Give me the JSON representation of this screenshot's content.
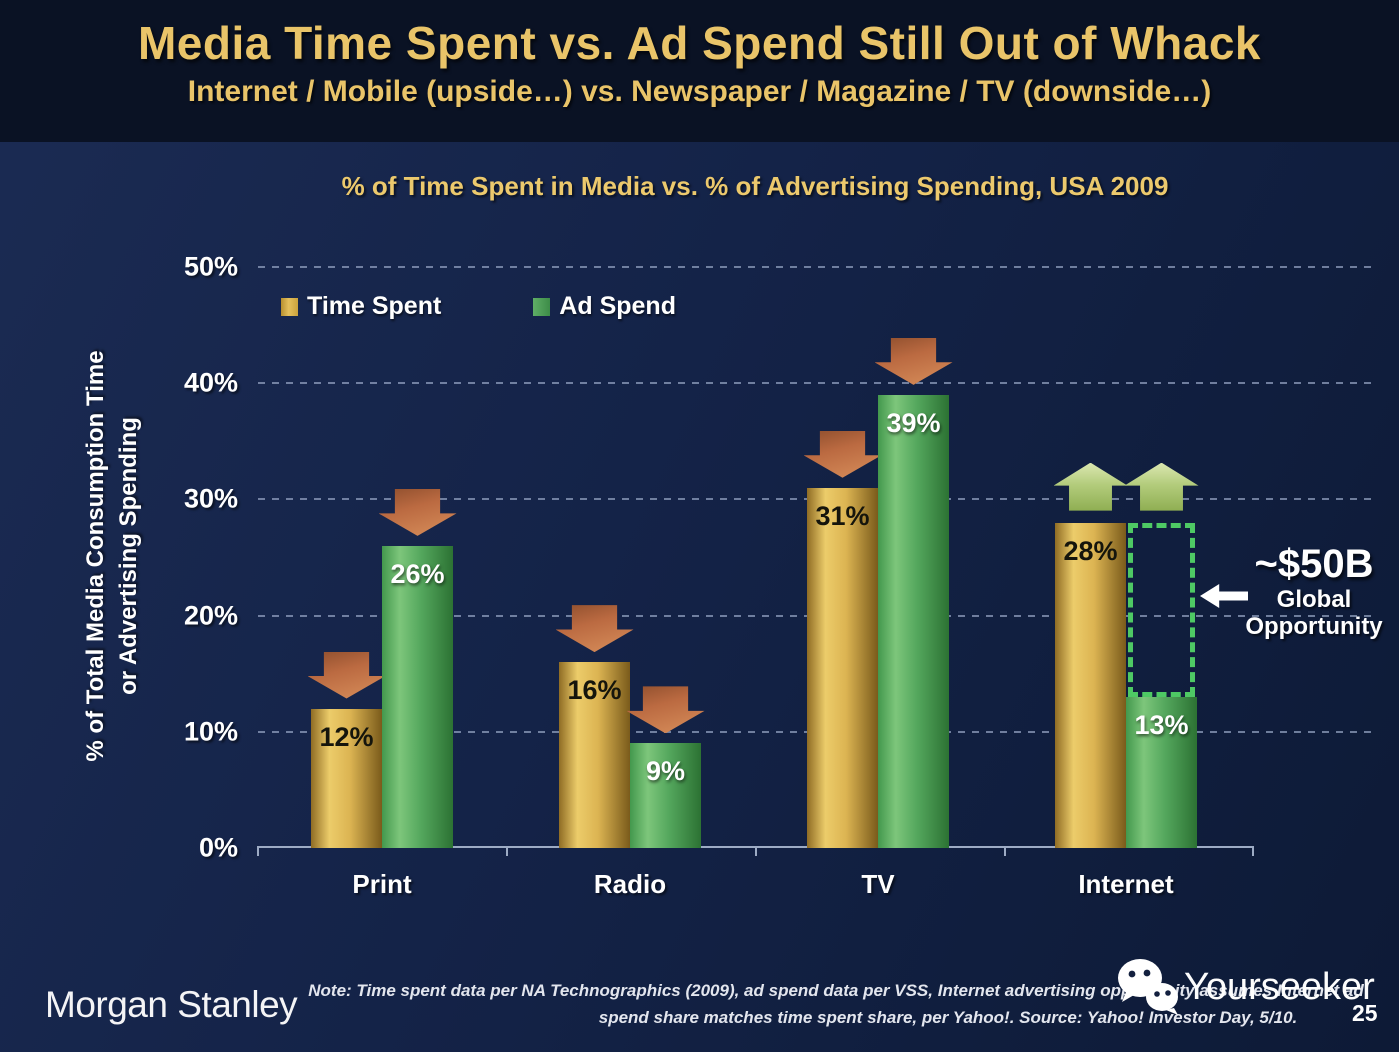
{
  "slide": {
    "title": "Media Time Spent vs. Ad Spend Still Out of Whack",
    "subtitle": "Internet / Mobile (upside…) vs. Newspaper / Magazine / TV (downside…)",
    "page_number": "25"
  },
  "chart_data": {
    "type": "bar",
    "title": "% of Time Spent in Media vs. % of Advertising Spending, USA 2009",
    "ylabel_line1": "% of Total Media Consumption Time",
    "ylabel_line2": "or Advertising Spending",
    "categories": [
      "Print",
      "Radio",
      "TV",
      "Internet"
    ],
    "series": [
      {
        "name": "Time Spent",
        "color": "#D9B04E",
        "values": [
          12,
          16,
          31,
          28
        ],
        "value_labels": [
          "12%",
          "16%",
          "31%",
          "28%"
        ],
        "trend": [
          "down",
          "down",
          "down",
          "up"
        ]
      },
      {
        "name": "Ad Spend",
        "color": "#4FA458",
        "values": [
          26,
          9,
          39,
          13
        ],
        "value_labels": [
          "26%",
          "9%",
          "39%",
          "13%"
        ],
        "trend": [
          "down",
          "down",
          "down",
          "up"
        ]
      }
    ],
    "y_ticks": [
      "0%",
      "10%",
      "20%",
      "30%",
      "40%",
      "50%"
    ],
    "ylim": [
      0,
      50
    ],
    "grid": "dashed horizontal",
    "legend_position": "top-left inside plot",
    "opportunity_box": {
      "category": "Internet",
      "series": "Ad Spend",
      "from_value": 13,
      "to_value": 28
    }
  },
  "annotation": {
    "headline": "~$50B",
    "line1": "Global",
    "line2": "Opportunity",
    "arrow_direction": "left"
  },
  "footer": {
    "logo": "Morgan Stanley",
    "note_line1": "Note: Time spent data per NA Technographics (2009), ad spend data per VSS, Internet advertising opportunity assumes Internet ad",
    "note_line2": "spend share matches time spent share, per Yahoo!. Source: Yahoo! Investor Day, 5/10.",
    "watermark": "Yourseeker"
  },
  "colors": {
    "background_body": "#13224A",
    "background_header": "#0A1224",
    "accent_gold_text": "#E9C469",
    "time_spent_bar": "#D9B04E",
    "ad_spend_bar": "#4FA458",
    "down_arrow": "#C4713F",
    "up_arrow": "#AFC878",
    "opportunity_dotted": "#4EC964",
    "axis_line": "#9DABC4",
    "text_white": "#FFFFFF"
  }
}
